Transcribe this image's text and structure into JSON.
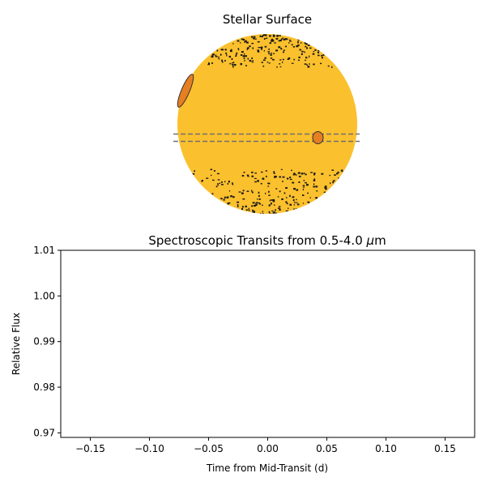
{
  "chart_data": [
    {
      "type": "diagram",
      "title": "Stellar Surface",
      "star_color": "#fbc02d",
      "spot_color": "#1a1a1a",
      "spot_bands": [
        "north",
        "south"
      ],
      "planet_color": "#e67e22",
      "planet_outline": "#333333",
      "transit_chord_color": "#707070",
      "transit_chord_style": "dashed"
    },
    {
      "type": "line",
      "title": "Spectroscopic Transits from 0.5-4.0 μm",
      "title_prefix": "Spectroscopic Transits from 0.5-4.0 ",
      "title_unit_mu": "μ",
      "title_unit_m": "m",
      "xlabel": "Time from Mid-Transit (d)",
      "ylabel": "Relative Flux",
      "xlim": [
        -0.175,
        0.175
      ],
      "ylim": [
        0.969,
        1.01
      ],
      "xticks": [
        -0.15,
        -0.1,
        -0.05,
        0.0,
        0.05,
        0.1,
        0.15
      ],
      "xtick_labels": [
        "−0.15",
        "−0.10",
        "−0.05",
        "0.00",
        "0.05",
        "0.10",
        "0.15"
      ],
      "yticks": [
        0.97,
        0.98,
        0.99,
        1.0,
        1.01
      ],
      "ytick_labels": [
        "0.97",
        "0.98",
        "0.99",
        "1.00",
        "1.01"
      ],
      "grid": false,
      "series": []
    }
  ]
}
